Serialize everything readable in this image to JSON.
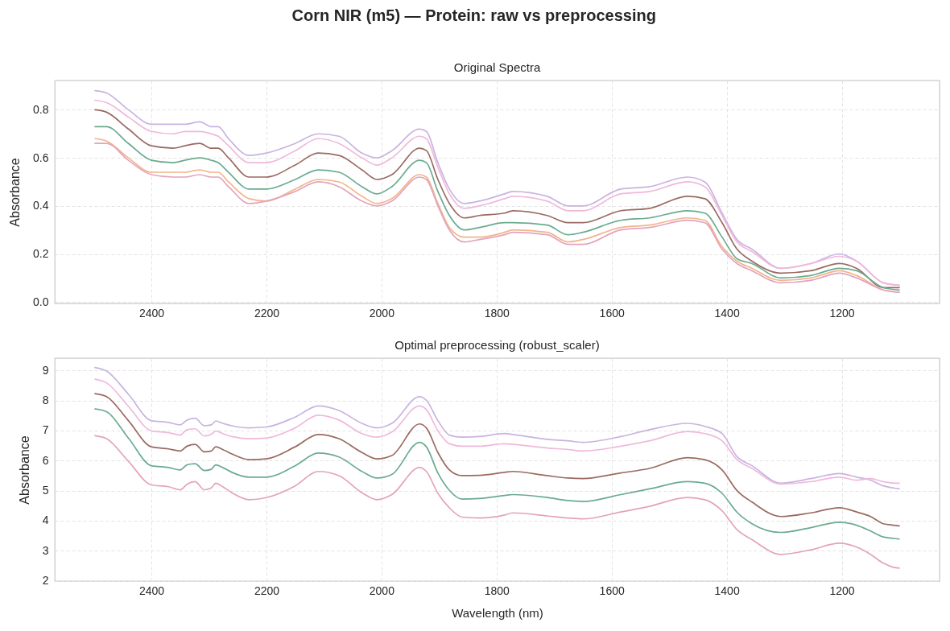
{
  "chart_data": [
    {
      "type": "line",
      "title": "Corn NIR (m5) — Protein: raw vs preprocessing",
      "subtitle": "Original Spectra",
      "ylabel": "Absorbance",
      "x": [
        2498,
        2478,
        2440,
        2400,
        2362,
        2342,
        2316,
        2296,
        2284,
        2266,
        2230,
        2200,
        2150,
        2110,
        2074,
        2034,
        2008,
        1982,
        1934,
        1922,
        1902,
        1882,
        1856,
        1830,
        1786,
        1772,
        1712,
        1676,
        1650,
        1584,
        1534,
        1468,
        1438,
        1408,
        1382,
        1356,
        1306,
        1254,
        1204,
        1174,
        1128,
        1100
      ],
      "series": [
        {
          "color": "#c9b3e0",
          "values": [
            0.88,
            0.87,
            0.8,
            0.74,
            0.74,
            0.74,
            0.75,
            0.73,
            0.73,
            0.68,
            0.61,
            0.62,
            0.66,
            0.7,
            0.69,
            0.62,
            0.6,
            0.63,
            0.72,
            0.71,
            0.58,
            0.47,
            0.41,
            0.42,
            0.45,
            0.46,
            0.44,
            0.4,
            0.4,
            0.47,
            0.48,
            0.52,
            0.5,
            0.37,
            0.26,
            0.22,
            0.14,
            0.16,
            0.2,
            0.17,
            0.08,
            0.07
          ]
        },
        {
          "color": "#f0b8dc",
          "values": [
            0.84,
            0.83,
            0.77,
            0.71,
            0.7,
            0.71,
            0.71,
            0.7,
            0.69,
            0.65,
            0.58,
            0.58,
            0.63,
            0.68,
            0.66,
            0.6,
            0.57,
            0.6,
            0.69,
            0.68,
            0.56,
            0.45,
            0.39,
            0.4,
            0.43,
            0.44,
            0.42,
            0.38,
            0.38,
            0.45,
            0.46,
            0.5,
            0.48,
            0.36,
            0.25,
            0.21,
            0.14,
            0.16,
            0.19,
            0.17,
            0.08,
            0.07
          ]
        },
        {
          "color": "#9b6a62",
          "values": [
            0.8,
            0.79,
            0.72,
            0.65,
            0.64,
            0.65,
            0.66,
            0.64,
            0.64,
            0.6,
            0.52,
            0.52,
            0.57,
            0.62,
            0.61,
            0.55,
            0.51,
            0.53,
            0.64,
            0.63,
            0.51,
            0.41,
            0.35,
            0.36,
            0.37,
            0.38,
            0.36,
            0.33,
            0.33,
            0.38,
            0.39,
            0.44,
            0.43,
            0.33,
            0.22,
            0.17,
            0.12,
            0.13,
            0.16,
            0.14,
            0.06,
            0.06
          ]
        },
        {
          "color": "#6aab90",
          "values": [
            0.73,
            0.73,
            0.66,
            0.59,
            0.58,
            0.59,
            0.6,
            0.59,
            0.58,
            0.54,
            0.47,
            0.47,
            0.51,
            0.55,
            0.54,
            0.48,
            0.45,
            0.48,
            0.59,
            0.58,
            0.46,
            0.36,
            0.3,
            0.31,
            0.33,
            0.33,
            0.32,
            0.28,
            0.29,
            0.34,
            0.35,
            0.38,
            0.37,
            0.27,
            0.18,
            0.16,
            0.1,
            0.11,
            0.14,
            0.13,
            0.06,
            0.05
          ]
        },
        {
          "color": "#f2b48a",
          "values": [
            0.68,
            0.67,
            0.6,
            0.54,
            0.54,
            0.54,
            0.55,
            0.54,
            0.54,
            0.5,
            0.43,
            0.42,
            0.47,
            0.51,
            0.5,
            0.44,
            0.41,
            0.43,
            0.53,
            0.52,
            0.41,
            0.31,
            0.27,
            0.27,
            0.29,
            0.3,
            0.29,
            0.25,
            0.26,
            0.31,
            0.32,
            0.35,
            0.34,
            0.23,
            0.17,
            0.14,
            0.09,
            0.1,
            0.13,
            0.11,
            0.05,
            0.04
          ]
        },
        {
          "color": "#e3a3bd",
          "values": [
            0.66,
            0.66,
            0.59,
            0.53,
            0.52,
            0.52,
            0.53,
            0.52,
            0.52,
            0.48,
            0.41,
            0.42,
            0.46,
            0.5,
            0.48,
            0.42,
            0.4,
            0.42,
            0.52,
            0.51,
            0.4,
            0.3,
            0.25,
            0.26,
            0.28,
            0.29,
            0.28,
            0.24,
            0.24,
            0.3,
            0.31,
            0.34,
            0.33,
            0.22,
            0.16,
            0.13,
            0.08,
            0.09,
            0.12,
            0.1,
            0.05,
            0.04
          ]
        }
      ],
      "xlim": [
        2568,
        1030
      ],
      "ylim": [
        -0.006,
        0.922
      ],
      "xticks": [
        2400,
        2200,
        2000,
        1800,
        1600,
        1400,
        1200
      ],
      "yticks": [
        {
          "value": 0,
          "label": "0.0"
        },
        0.2,
        0.4,
        0.6,
        0.8
      ],
      "grid": true
    },
    {
      "type": "line",
      "title": "Optimal preprocessing (robust_scaler)",
      "xlabel": "Wavelength (nm)",
      "ylabel": "Absorbance",
      "x": [
        2498,
        2478,
        2440,
        2400,
        2370,
        2350,
        2338,
        2324,
        2308,
        2296,
        2288,
        2276,
        2260,
        2230,
        2200,
        2150,
        2110,
        2074,
        2034,
        2008,
        1982,
        1934,
        1922,
        1902,
        1882,
        1860,
        1830,
        1786,
        1772,
        1712,
        1676,
        1650,
        1584,
        1534,
        1468,
        1438,
        1408,
        1382,
        1356,
        1306,
        1254,
        1204,
        1174,
        1150,
        1128,
        1110,
        1100
      ],
      "series": [
        {
          "color": "#c9b3e0",
          "values": [
            9.1,
            8.98,
            8.21,
            7.33,
            7.27,
            7.19,
            7.35,
            7.41,
            7.16,
            7.19,
            7.32,
            7.24,
            7.16,
            7.09,
            7.12,
            7.45,
            7.82,
            7.67,
            7.24,
            7.09,
            7.24,
            8.13,
            8.01,
            7.33,
            6.85,
            6.78,
            6.8,
            6.9,
            6.87,
            6.71,
            6.66,
            6.61,
            6.8,
            7.03,
            7.24,
            7.14,
            6.9,
            6.13,
            5.83,
            5.25,
            5.4,
            5.57,
            5.45,
            5.35,
            5.16,
            5.09,
            5.06
          ]
        },
        {
          "color": "#f0b8dc",
          "values": [
            8.71,
            8.59,
            7.81,
            6.99,
            6.93,
            6.85,
            7.03,
            7.06,
            6.82,
            6.87,
            6.99,
            6.9,
            6.8,
            6.73,
            6.75,
            7.09,
            7.51,
            7.35,
            6.9,
            6.78,
            6.95,
            7.82,
            7.7,
            6.99,
            6.56,
            6.48,
            6.48,
            6.56,
            6.54,
            6.42,
            6.37,
            6.32,
            6.48,
            6.66,
            6.97,
            6.9,
            6.66,
            6.03,
            5.74,
            5.22,
            5.3,
            5.45,
            5.35,
            5.4,
            5.3,
            5.25,
            5.25
          ]
        },
        {
          "color": "#9b6a62",
          "values": [
            8.23,
            8.13,
            7.33,
            6.46,
            6.39,
            6.32,
            6.48,
            6.54,
            6.29,
            6.32,
            6.46,
            6.37,
            6.22,
            6.03,
            6.06,
            6.46,
            6.87,
            6.73,
            6.27,
            6.06,
            6.17,
            7.22,
            7.09,
            6.27,
            5.69,
            5.5,
            5.51,
            5.61,
            5.64,
            5.5,
            5.42,
            5.4,
            5.59,
            5.74,
            6.1,
            6.03,
            5.69,
            5.0,
            4.62,
            4.14,
            4.26,
            4.43,
            4.29,
            4.14,
            3.9,
            3.85,
            3.83
          ]
        },
        {
          "color": "#6aab90",
          "values": [
            7.72,
            7.63,
            6.75,
            5.83,
            5.77,
            5.69,
            5.86,
            5.9,
            5.67,
            5.71,
            5.86,
            5.77,
            5.61,
            5.45,
            5.45,
            5.83,
            6.25,
            6.12,
            5.64,
            5.42,
            5.54,
            6.61,
            6.46,
            5.59,
            5.01,
            4.72,
            4.74,
            4.84,
            4.87,
            4.77,
            4.67,
            4.64,
            4.87,
            5.06,
            5.3,
            5.25,
            4.91,
            4.28,
            3.9,
            3.61,
            3.77,
            3.95,
            3.85,
            3.66,
            3.46,
            3.41,
            3.39
          ]
        },
        {
          "color": "#e3a3bd",
          "values": [
            6.83,
            6.73,
            5.98,
            5.19,
            5.13,
            5.03,
            5.21,
            5.3,
            5.03,
            5.09,
            5.25,
            5.13,
            4.93,
            4.7,
            4.77,
            5.16,
            5.64,
            5.5,
            4.93,
            4.7,
            4.87,
            5.77,
            5.64,
            4.91,
            4.43,
            4.12,
            4.09,
            4.19,
            4.26,
            4.16,
            4.09,
            4.06,
            4.29,
            4.48,
            4.77,
            4.7,
            4.33,
            3.7,
            3.37,
            2.88,
            3.03,
            3.25,
            3.12,
            2.88,
            2.59,
            2.45,
            2.42
          ]
        }
      ],
      "xlim": [
        2568,
        1030
      ],
      "ylim": [
        1.99,
        9.41
      ],
      "xticks": [
        2400,
        2200,
        2000,
        1800,
        1600,
        1400,
        1200
      ],
      "yticks": [
        2,
        3,
        4,
        5,
        6,
        7,
        8,
        9
      ],
      "grid": true
    }
  ]
}
